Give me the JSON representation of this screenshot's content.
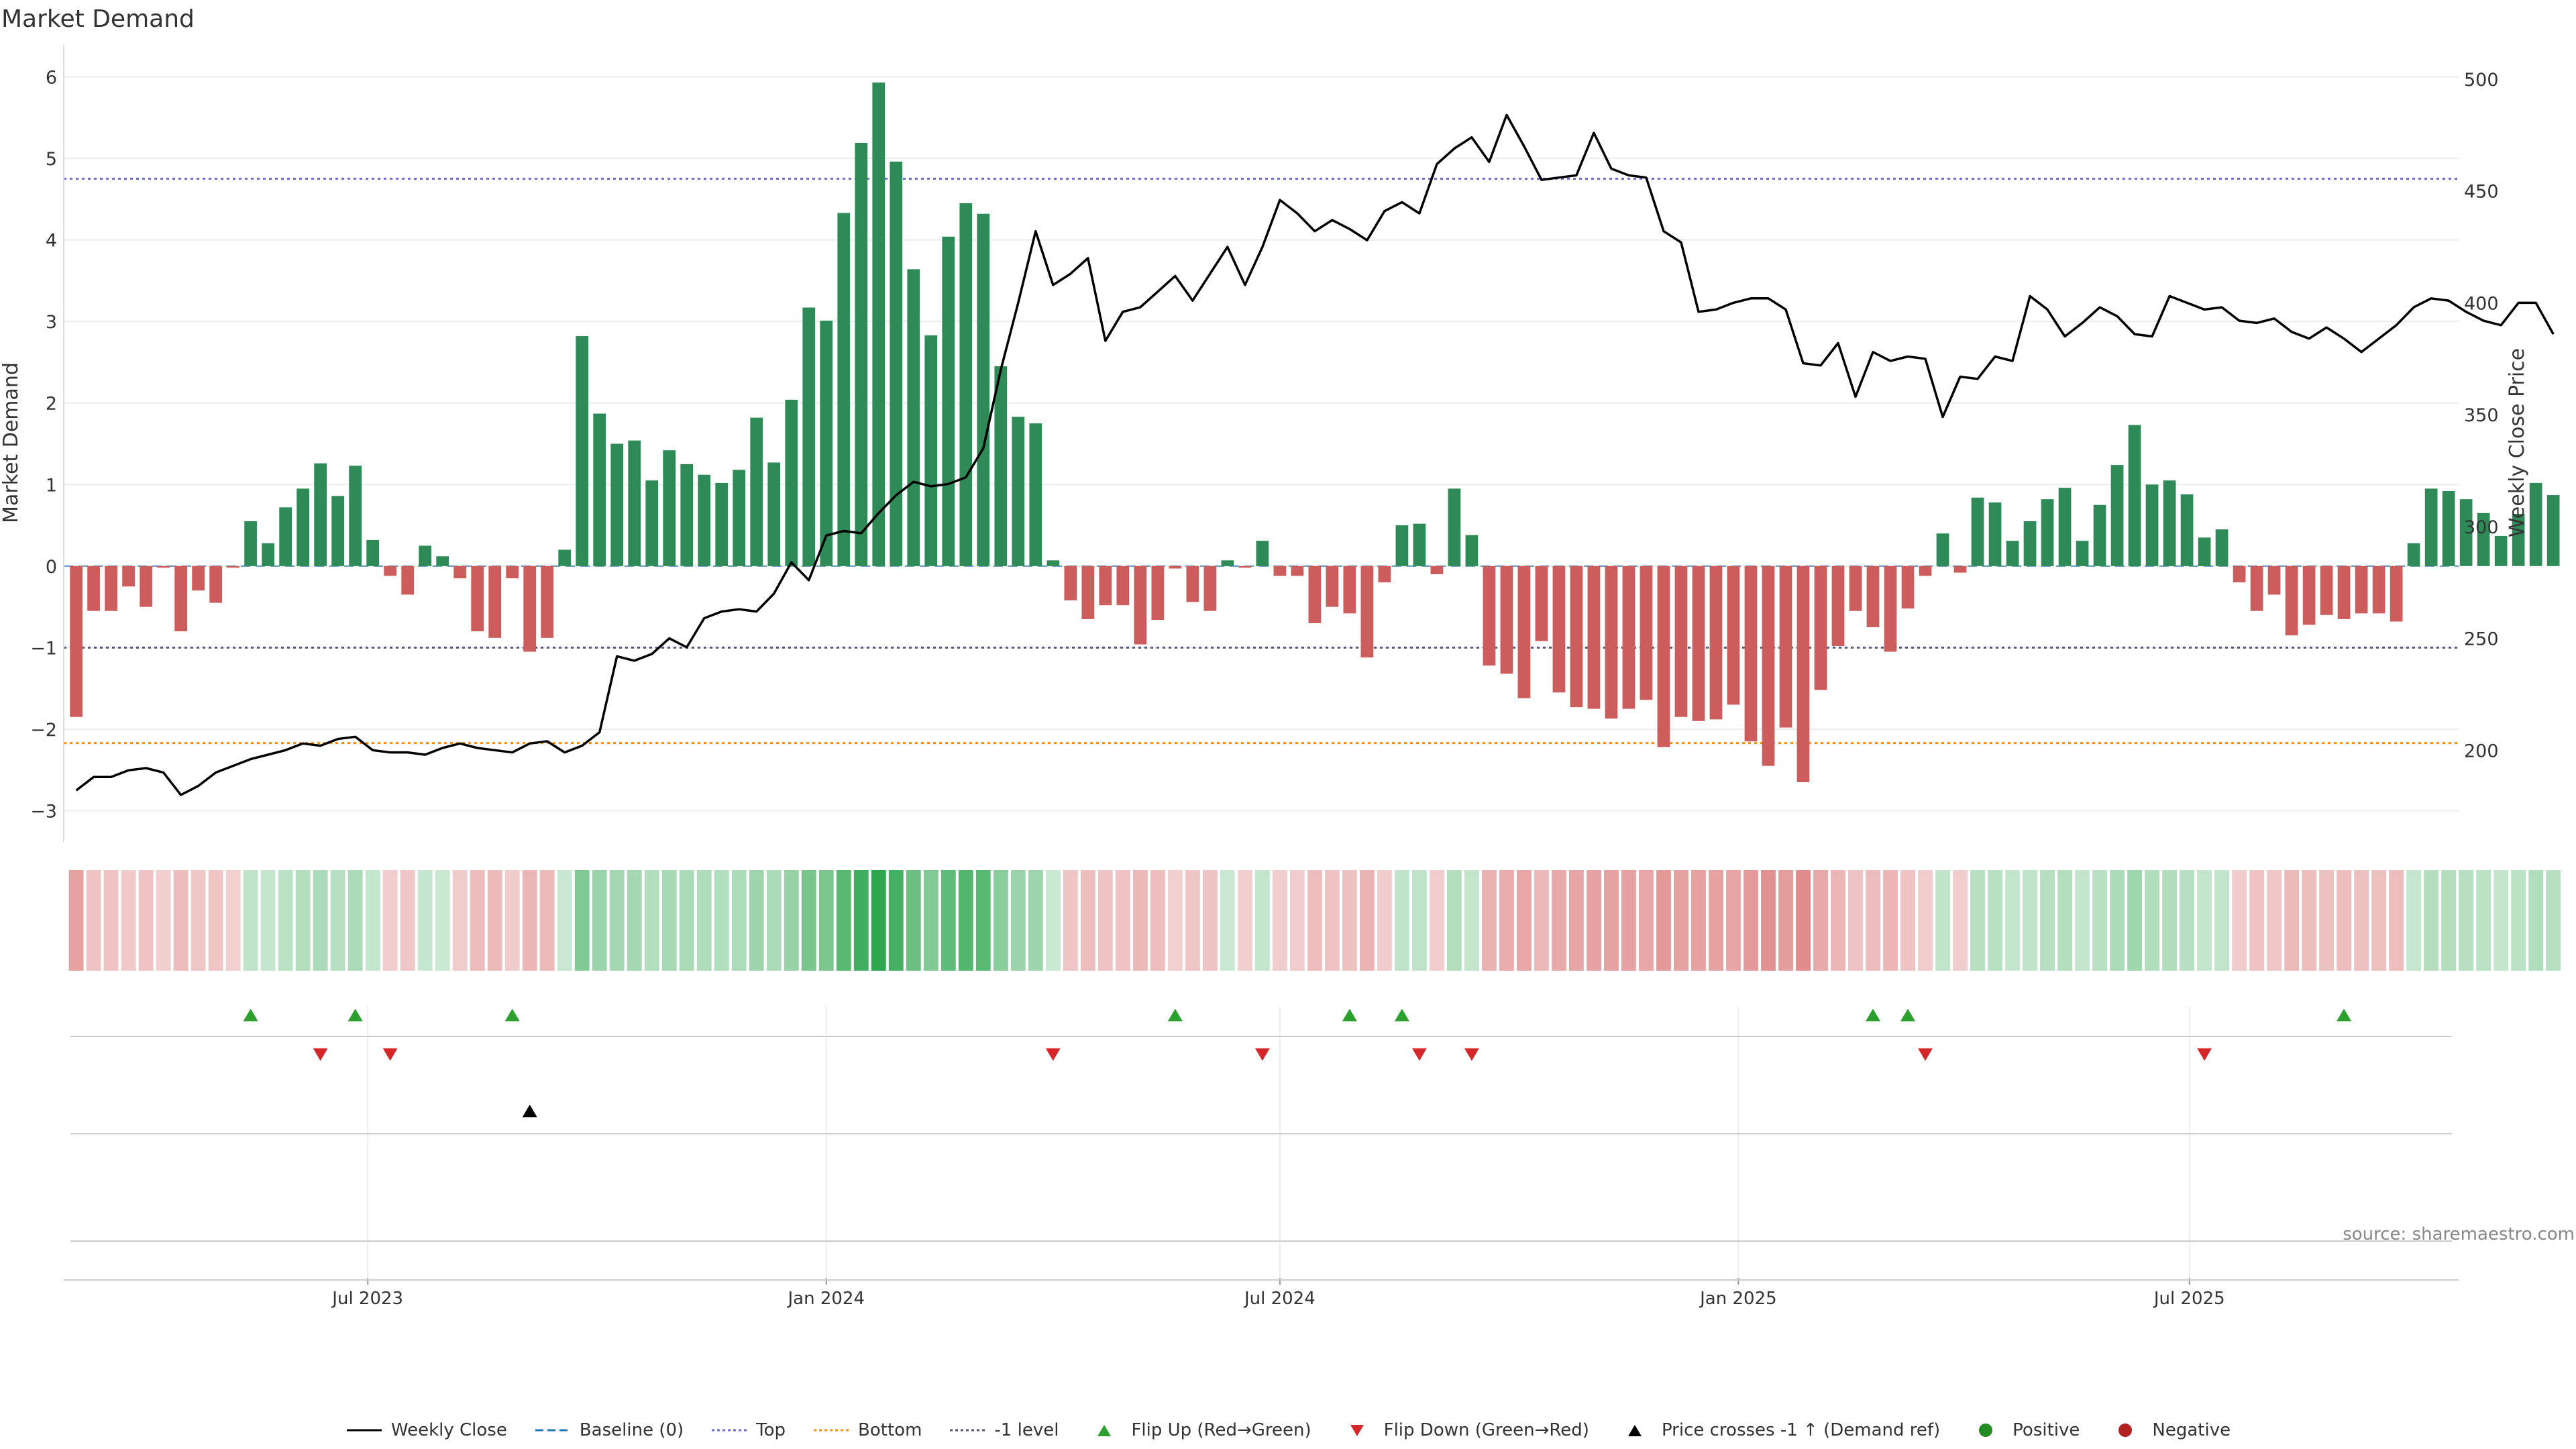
{
  "title": "Market Demand",
  "source": "source: sharemaestro.com",
  "legend": [
    {
      "key": "weekly_close",
      "label": "Weekly Close",
      "color": "#000000",
      "kind": "line"
    },
    {
      "key": "baseline",
      "label": "Baseline (0)",
      "color": "#1f77b4",
      "kind": "dash"
    },
    {
      "key": "top",
      "label": "Top",
      "color": "#6a6ad8",
      "kind": "dot"
    },
    {
      "key": "bottom",
      "label": "Bottom",
      "color": "#ff8c00",
      "kind": "dot"
    },
    {
      "key": "minus1",
      "label": "-1 level",
      "color": "#555577",
      "kind": "dot"
    },
    {
      "key": "flip_up",
      "label": "Flip Up (Red→Green)",
      "color": "#2ca02c",
      "kind": "tri-up"
    },
    {
      "key": "flip_down",
      "label": "Flip Down (Green→Red)",
      "color": "#d62728",
      "kind": "tri-down"
    },
    {
      "key": "price_cross",
      "label": "Price crosses -1 ↑ (Demand ref)",
      "color": "#000000",
      "kind": "tri-up"
    },
    {
      "key": "positive",
      "label": "Positive",
      "color": "#228b22",
      "kind": "circle"
    },
    {
      "key": "negative",
      "label": "Negative",
      "color": "#b22222",
      "kind": "circle"
    }
  ],
  "chart_data": {
    "type": "bar",
    "ylabel": "Market Demand",
    "y2label": "Weekly Close Price",
    "ylim": [
      -3.3,
      6.3
    ],
    "y2lim": [
      162,
      512
    ],
    "yticks": [
      "6",
      "5",
      "4",
      "3",
      "2",
      "1",
      "0",
      "−1",
      "−2",
      "−3"
    ],
    "yticks_values": [
      6,
      5,
      4,
      3,
      2,
      1,
      0,
      -1,
      -2,
      -3
    ],
    "y2ticks_values": [
      500,
      450,
      400,
      350,
      300,
      250,
      200
    ],
    "levels": {
      "top": 4.75,
      "bottom": -2.17,
      "minus1": -1,
      "baseline": 0
    },
    "x_start": "2023-03-06",
    "x_step_days": 7,
    "x_range": [
      "2023-03-01",
      "2025-10-17"
    ],
    "xticks": [
      {
        "date": "2023-07-01",
        "label": "Jul 2023"
      },
      {
        "date": "2024-01-01",
        "label": "Jan 2024"
      },
      {
        "date": "2024-07-01",
        "label": "Jul 2024"
      },
      {
        "date": "2025-01-01",
        "label": "Jan 2025"
      },
      {
        "date": "2025-07-01",
        "label": "Jul 2025"
      }
    ],
    "demand": [
      -1.85,
      -0.55,
      -0.55,
      -0.25,
      -0.5,
      -0.02,
      -0.8,
      -0.3,
      -0.45,
      -0.02,
      0.55,
      0.28,
      0.72,
      0.95,
      1.26,
      0.86,
      1.23,
      0.32,
      -0.12,
      -0.35,
      0.25,
      0.12,
      -0.15,
      -0.8,
      -0.88,
      -0.15,
      -1.05,
      -0.88,
      0.2,
      2.82,
      1.87,
      1.5,
      1.54,
      1.05,
      1.42,
      1.25,
      1.12,
      1.02,
      1.18,
      1.82,
      1.27,
      2.04,
      3.17,
      3.01,
      4.33,
      5.19,
      5.93,
      4.96,
      3.64,
      2.83,
      4.04,
      4.45,
      4.32,
      2.45,
      1.83,
      1.75,
      0.07,
      -0.42,
      -0.65,
      -0.48,
      -0.48,
      -0.96,
      -0.66,
      -0.03,
      -0.44,
      -0.55,
      0.07,
      -0.02,
      0.31,
      -0.12,
      -0.12,
      -0.7,
      -0.5,
      -0.58,
      -1.12,
      -0.2,
      0.5,
      0.52,
      -0.1,
      0.95,
      0.38,
      -1.22,
      -1.32,
      -1.62,
      -0.92,
      -1.55,
      -1.73,
      -1.75,
      -1.87,
      -1.75,
      -1.64,
      -2.22,
      -1.85,
      -1.9,
      -1.88,
      -1.7,
      -2.15,
      -2.45,
      -1.98,
      -2.65,
      -1.52,
      -0.98,
      -0.55,
      -0.75,
      -1.05,
      -0.52,
      -0.12,
      0.4,
      -0.08,
      0.84,
      0.78,
      0.31,
      0.55,
      0.82,
      0.96,
      0.31,
      0.75,
      1.24,
      1.73,
      1.0,
      1.05,
      0.88,
      0.35,
      0.45,
      -0.2,
      -0.55,
      -0.35,
      -0.85,
      -0.72,
      -0.6,
      -0.65,
      -0.58,
      -0.58,
      -0.68,
      0.28,
      0.95,
      0.92,
      0.82,
      0.65,
      0.37,
      0.64,
      1.02,
      0.87
    ],
    "weekly_close": [
      182,
      188,
      188,
      191,
      192,
      190,
      180,
      184,
      190,
      193,
      196,
      198,
      200,
      203,
      202,
      205,
      206,
      200,
      199,
      199,
      198,
      201,
      203,
      201,
      200,
      199,
      203,
      204,
      199,
      202,
      208,
      242,
      240,
      243,
      250,
      246,
      259,
      262,
      263,
      262,
      270,
      284,
      276,
      296,
      298,
      297,
      306,
      314,
      320,
      318,
      319,
      322,
      335,
      370,
      400,
      432,
      408,
      413,
      420,
      383,
      396,
      398,
      405,
      412,
      401,
      413,
      425,
      408,
      425,
      446,
      440,
      432,
      437,
      433,
      428,
      441,
      445,
      440,
      462,
      469,
      474,
      463,
      484,
      470,
      455,
      456,
      457,
      476,
      460,
      457,
      456,
      432,
      427,
      396,
      397,
      400,
      402,
      402,
      397,
      373,
      372,
      382,
      358,
      378,
      374,
      376,
      375,
      349,
      367,
      366,
      376,
      374,
      403,
      397,
      385,
      391,
      398,
      394,
      386,
      385,
      403,
      400,
      397,
      398,
      392,
      391,
      393,
      387,
      384,
      389,
      384,
      378,
      384,
      390,
      398,
      402,
      401,
      396,
      392,
      390,
      400,
      400,
      386
    ]
  },
  "status_strip": {
    "neg_color": "#c62828",
    "pos_color": "#1b9e3e"
  },
  "events": {
    "flip_up": [
      "2023-05-15",
      "2023-06-26",
      "2023-08-28",
      "2024-05-20",
      "2024-07-29",
      "2024-08-19",
      "2025-02-24",
      "2025-03-10",
      "2025-09-01"
    ],
    "flip_down": [
      "2023-06-12",
      "2023-07-10",
      "2024-04-01",
      "2024-06-24",
      "2024-08-26",
      "2024-09-16",
      "2025-03-17",
      "2025-07-07"
    ],
    "price_cross": [
      "2023-09-04"
    ]
  }
}
